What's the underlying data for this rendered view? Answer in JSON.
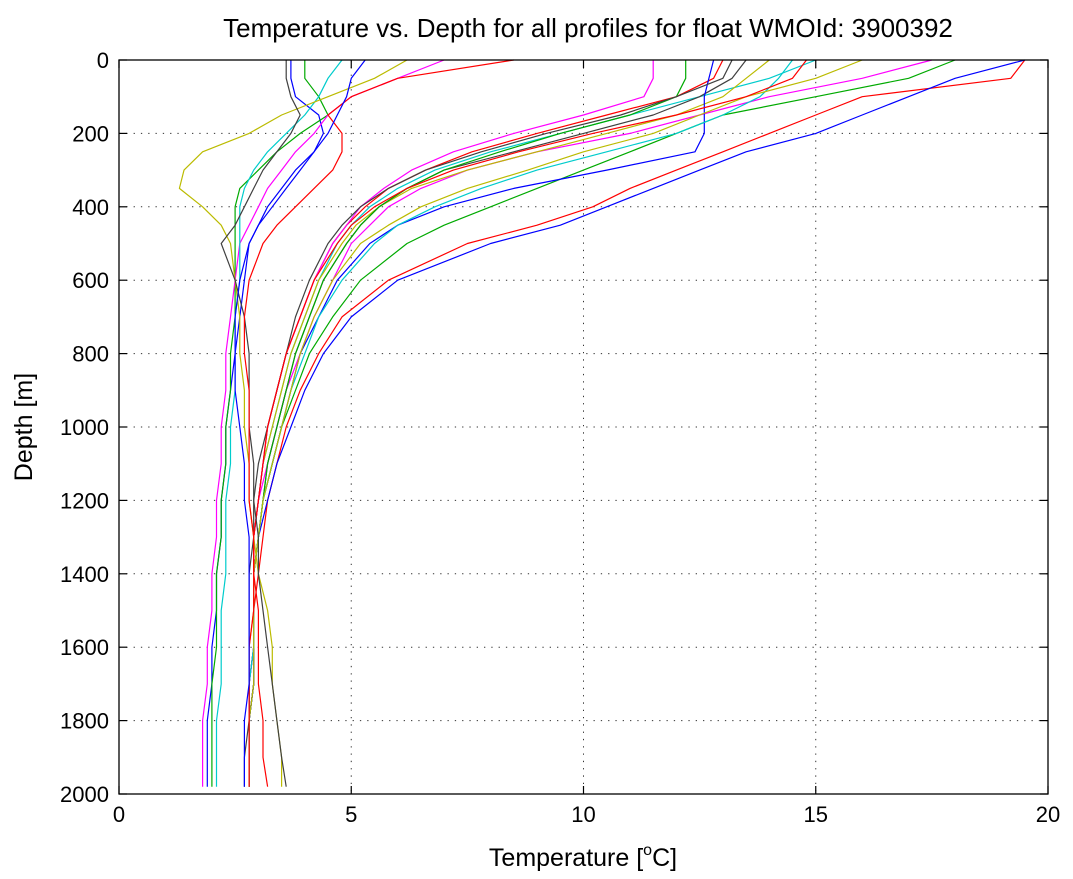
{
  "chart_data": {
    "type": "line",
    "title": "Temperature vs. Depth for all profiles for float WMOId: 3900392",
    "xlabel_main": "Temperature [",
    "xlabel_sup": "o",
    "xlabel_end": "C]",
    "ylabel": "Depth [m]",
    "xlim": [
      0,
      20
    ],
    "ylim": [
      0,
      2000
    ],
    "y_reversed": true,
    "grid": "dotted",
    "xticks": [
      "0",
      "5",
      "10",
      "15",
      "20"
    ],
    "yticks": [
      "0",
      "200",
      "400",
      "600",
      "800",
      "1000",
      "1200",
      "1400",
      "1600",
      "1800",
      "2000"
    ],
    "colors": [
      "#ff0000",
      "#0000ff",
      "#00aa00",
      "#ff00ff",
      "#00cccc",
      "#bbbb00",
      "#404040"
    ],
    "depths": [
      0,
      50,
      100,
      150,
      200,
      250,
      300,
      350,
      400,
      450,
      500,
      600,
      700,
      800,
      900,
      1000,
      1100,
      1200,
      1300,
      1400,
      1500,
      1600,
      1700,
      1800,
      1900,
      1980
    ],
    "series": [
      {
        "temps": [
          19.5,
          19.2,
          16.0,
          15.0,
          14.0,
          13.0,
          12.0,
          11.0,
          10.2,
          9.0,
          7.5,
          5.8,
          4.8,
          4.3,
          3.9,
          3.6,
          3.4,
          3.2,
          3.1,
          3.0,
          2.9,
          2.9,
          2.9,
          2.8,
          2.8,
          2.8
        ]
      },
      {
        "temps": [
          19.5,
          18.0,
          17.0,
          16.0,
          15.0,
          13.5,
          12.5,
          11.5,
          10.5,
          9.5,
          8.0,
          6.0,
          5.0,
          4.4,
          4.0,
          3.7,
          3.4,
          3.2,
          3.0,
          2.9,
          2.9,
          2.9,
          2.9,
          2.8,
          2.8,
          2.8
        ]
      },
      {
        "temps": [
          18.0,
          17.0,
          15.0,
          13.0,
          12.0,
          11.0,
          10.0,
          9.0,
          8.0,
          7.0,
          6.2,
          5.2,
          4.6,
          4.1,
          3.8,
          3.5,
          3.3,
          3.1,
          3.0,
          2.9,
          2.9,
          2.9,
          2.9,
          2.8,
          2.8,
          2.8
        ]
      },
      {
        "temps": [
          17.5,
          16.0,
          14.0,
          12.5,
          11.0,
          9.0,
          7.5,
          6.5,
          5.8,
          5.4,
          5.0,
          4.6,
          4.2,
          3.9,
          3.6,
          3.4,
          3.2,
          3.0,
          2.9,
          2.9,
          2.9,
          2.9,
          2.8,
          2.8,
          2.8,
          2.8
        ]
      },
      {
        "temps": [
          15.0,
          14.0,
          12.5,
          11.0,
          9.5,
          8.0,
          6.8,
          6.0,
          5.4,
          5.0,
          4.7,
          4.3,
          4.0,
          3.7,
          3.5,
          3.3,
          3.1,
          3.0,
          2.9,
          2.9,
          2.9,
          2.9,
          2.8,
          2.8,
          2.8,
          2.8
        ]
      },
      {
        "temps": [
          14.0,
          13.5,
          13.0,
          12.0,
          10.5,
          9.0,
          7.5,
          6.3,
          5.6,
          5.1,
          4.8,
          4.3,
          4.0,
          3.7,
          3.5,
          3.3,
          3.1,
          3.0,
          2.9,
          2.9,
          2.9,
          2.8,
          2.8,
          2.8,
          2.8,
          2.8
        ]
      },
      {
        "temps": [
          13.5,
          13.2,
          12.5,
          11.5,
          10.0,
          8.5,
          7.0,
          6.2,
          5.6,
          5.2,
          4.9,
          4.4,
          4.1,
          3.8,
          3.6,
          3.4,
          3.2,
          3.1,
          3.0,
          2.9,
          2.9,
          2.9,
          2.9,
          2.8,
          2.8,
          2.8
        ]
      },
      {
        "temps": [
          13.0,
          12.8,
          12.0,
          10.5,
          9.0,
          7.6,
          6.6,
          5.8,
          5.3,
          4.9,
          4.6,
          4.2,
          3.9,
          3.6,
          3.4,
          3.2,
          3.1,
          3.0,
          2.9,
          2.9,
          2.9,
          2.9,
          2.8,
          2.8,
          2.8,
          2.8
        ]
      },
      {
        "temps": [
          12.8,
          12.7,
          12.6,
          12.6,
          12.6,
          12.4,
          10.5,
          8.5,
          7.0,
          6.0,
          5.4,
          4.7,
          4.3,
          3.9,
          3.7,
          3.5,
          3.3,
          3.1,
          3.0,
          2.9,
          2.9,
          2.9,
          2.9,
          2.8,
          2.8,
          2.8
        ]
      },
      {
        "temps": [
          12.2,
          12.2,
          12.0,
          11.0,
          9.5,
          8.2,
          7.0,
          6.2,
          5.6,
          5.2,
          4.9,
          4.4,
          4.1,
          3.8,
          3.6,
          3.4,
          3.2,
          3.1,
          3.0,
          2.9,
          2.9,
          2.9,
          2.8,
          2.8,
          2.8,
          2.8
        ]
      },
      {
        "temps": [
          11.5,
          11.5,
          11.3,
          10.0,
          8.5,
          7.2,
          6.3,
          5.7,
          5.2,
          4.9,
          4.6,
          4.2,
          3.9,
          3.6,
          3.4,
          3.2,
          3.1,
          3.0,
          2.9,
          2.9,
          2.9,
          2.9,
          2.8,
          2.8,
          2.8,
          2.8
        ]
      },
      {
        "temps": [
          14.5,
          14.2,
          13.8,
          13.0,
          12.0,
          10.5,
          9.0,
          7.8,
          6.8,
          6.0,
          5.5,
          4.8,
          4.3,
          4.0,
          3.7,
          3.5,
          3.3,
          3.1,
          3.0,
          2.9,
          2.9,
          2.9,
          2.8,
          2.8,
          2.8,
          2.8
        ]
      },
      {
        "temps": [
          16.0,
          15.0,
          13.5,
          12.5,
          11.5,
          10.0,
          8.8,
          7.5,
          6.5,
          5.8,
          5.2,
          4.6,
          4.2,
          3.9,
          3.7,
          3.5,
          3.3,
          3.1,
          3.0,
          2.9,
          2.9,
          2.9,
          2.9,
          2.8,
          2.8,
          2.8
        ]
      },
      {
        "temps": [
          13.2,
          13.0,
          12.0,
          10.8,
          9.2,
          7.8,
          6.6,
          5.8,
          5.2,
          4.8,
          4.5,
          4.1,
          3.8,
          3.6,
          3.4,
          3.2,
          3.0,
          2.9,
          2.9,
          2.8,
          2.8,
          2.8,
          2.8,
          2.8,
          2.7,
          2.7
        ]
      },
      {
        "temps": [
          14.8,
          14.5,
          13.5,
          12.0,
          10.2,
          8.6,
          7.2,
          6.2,
          5.5,
          5.0,
          4.7,
          4.2,
          3.9,
          3.6,
          3.4,
          3.2,
          3.1,
          3.0,
          2.9,
          2.9,
          2.9,
          2.8,
          2.8,
          2.8,
          2.8,
          2.8
        ]
      },
      {
        "temps": [
          3.7,
          3.7,
          3.8,
          4.3,
          4.4,
          4.2,
          3.8,
          3.5,
          3.2,
          3.0,
          2.8,
          2.7,
          2.6,
          2.5,
          2.4,
          2.3,
          2.3,
          2.2,
          2.2,
          2.1,
          2.1,
          2.0,
          2.0,
          1.9,
          1.9,
          1.9
        ]
      },
      {
        "temps": [
          4.0,
          4.0,
          4.3,
          4.5,
          3.9,
          3.4,
          3.0,
          2.6,
          2.5,
          2.5,
          2.5,
          2.5,
          2.5,
          2.4,
          2.4,
          2.3,
          2.3,
          2.2,
          2.2,
          2.1,
          2.1,
          2.1,
          2.0,
          2.0,
          2.0,
          2.0
        ]
      },
      {
        "temps": [
          7.0,
          6.0,
          5.0,
          4.5,
          4.2,
          3.8,
          3.5,
          3.2,
          3.0,
          2.8,
          2.6,
          2.5,
          2.4,
          2.3,
          2.3,
          2.2,
          2.2,
          2.1,
          2.1,
          2.0,
          2.0,
          1.9,
          1.9,
          1.8,
          1.8,
          1.8
        ]
      },
      {
        "temps": [
          4.8,
          4.5,
          4.3,
          4.0,
          3.6,
          3.2,
          2.9,
          2.7,
          2.6,
          2.6,
          2.6,
          2.6,
          2.5,
          2.5,
          2.5,
          2.4,
          2.4,
          2.3,
          2.3,
          2.3,
          2.2,
          2.2,
          2.2,
          2.1,
          2.1,
          2.1
        ]
      },
      {
        "temps": [
          6.2,
          5.5,
          4.5,
          3.5,
          2.8,
          1.8,
          1.4,
          1.3,
          1.8,
          2.2,
          2.4,
          2.5,
          2.6,
          2.6,
          2.7,
          2.7,
          2.8,
          2.8,
          2.9,
          3.0,
          3.2,
          3.3,
          3.3,
          3.4,
          3.5,
          3.5
        ]
      },
      {
        "temps": [
          3.6,
          3.6,
          3.7,
          3.9,
          3.7,
          3.4,
          3.1,
          2.9,
          2.7,
          2.5,
          2.2,
          2.5,
          2.7,
          2.8,
          2.8,
          2.8,
          2.9,
          2.9,
          3.0,
          3.0,
          3.1,
          3.2,
          3.3,
          3.4,
          3.5,
          3.6
        ]
      },
      {
        "temps": [
          8.5,
          6.0,
          5.0,
          4.5,
          4.8,
          4.8,
          4.6,
          4.2,
          3.8,
          3.4,
          3.1,
          2.8,
          2.7,
          2.7,
          2.8,
          2.8,
          2.8,
          2.8,
          2.9,
          2.9,
          3.0,
          3.0,
          3.0,
          3.1,
          3.1,
          3.2
        ]
      },
      {
        "temps": [
          5.3,
          5.0,
          4.9,
          4.7,
          4.5,
          4.2,
          3.9,
          3.6,
          3.3,
          3.0,
          2.8,
          2.6,
          2.5,
          2.5,
          2.5,
          2.6,
          2.7,
          2.7,
          2.8,
          2.8,
          2.8,
          2.8,
          2.8,
          2.7,
          2.7,
          2.7
        ]
      }
    ]
  }
}
